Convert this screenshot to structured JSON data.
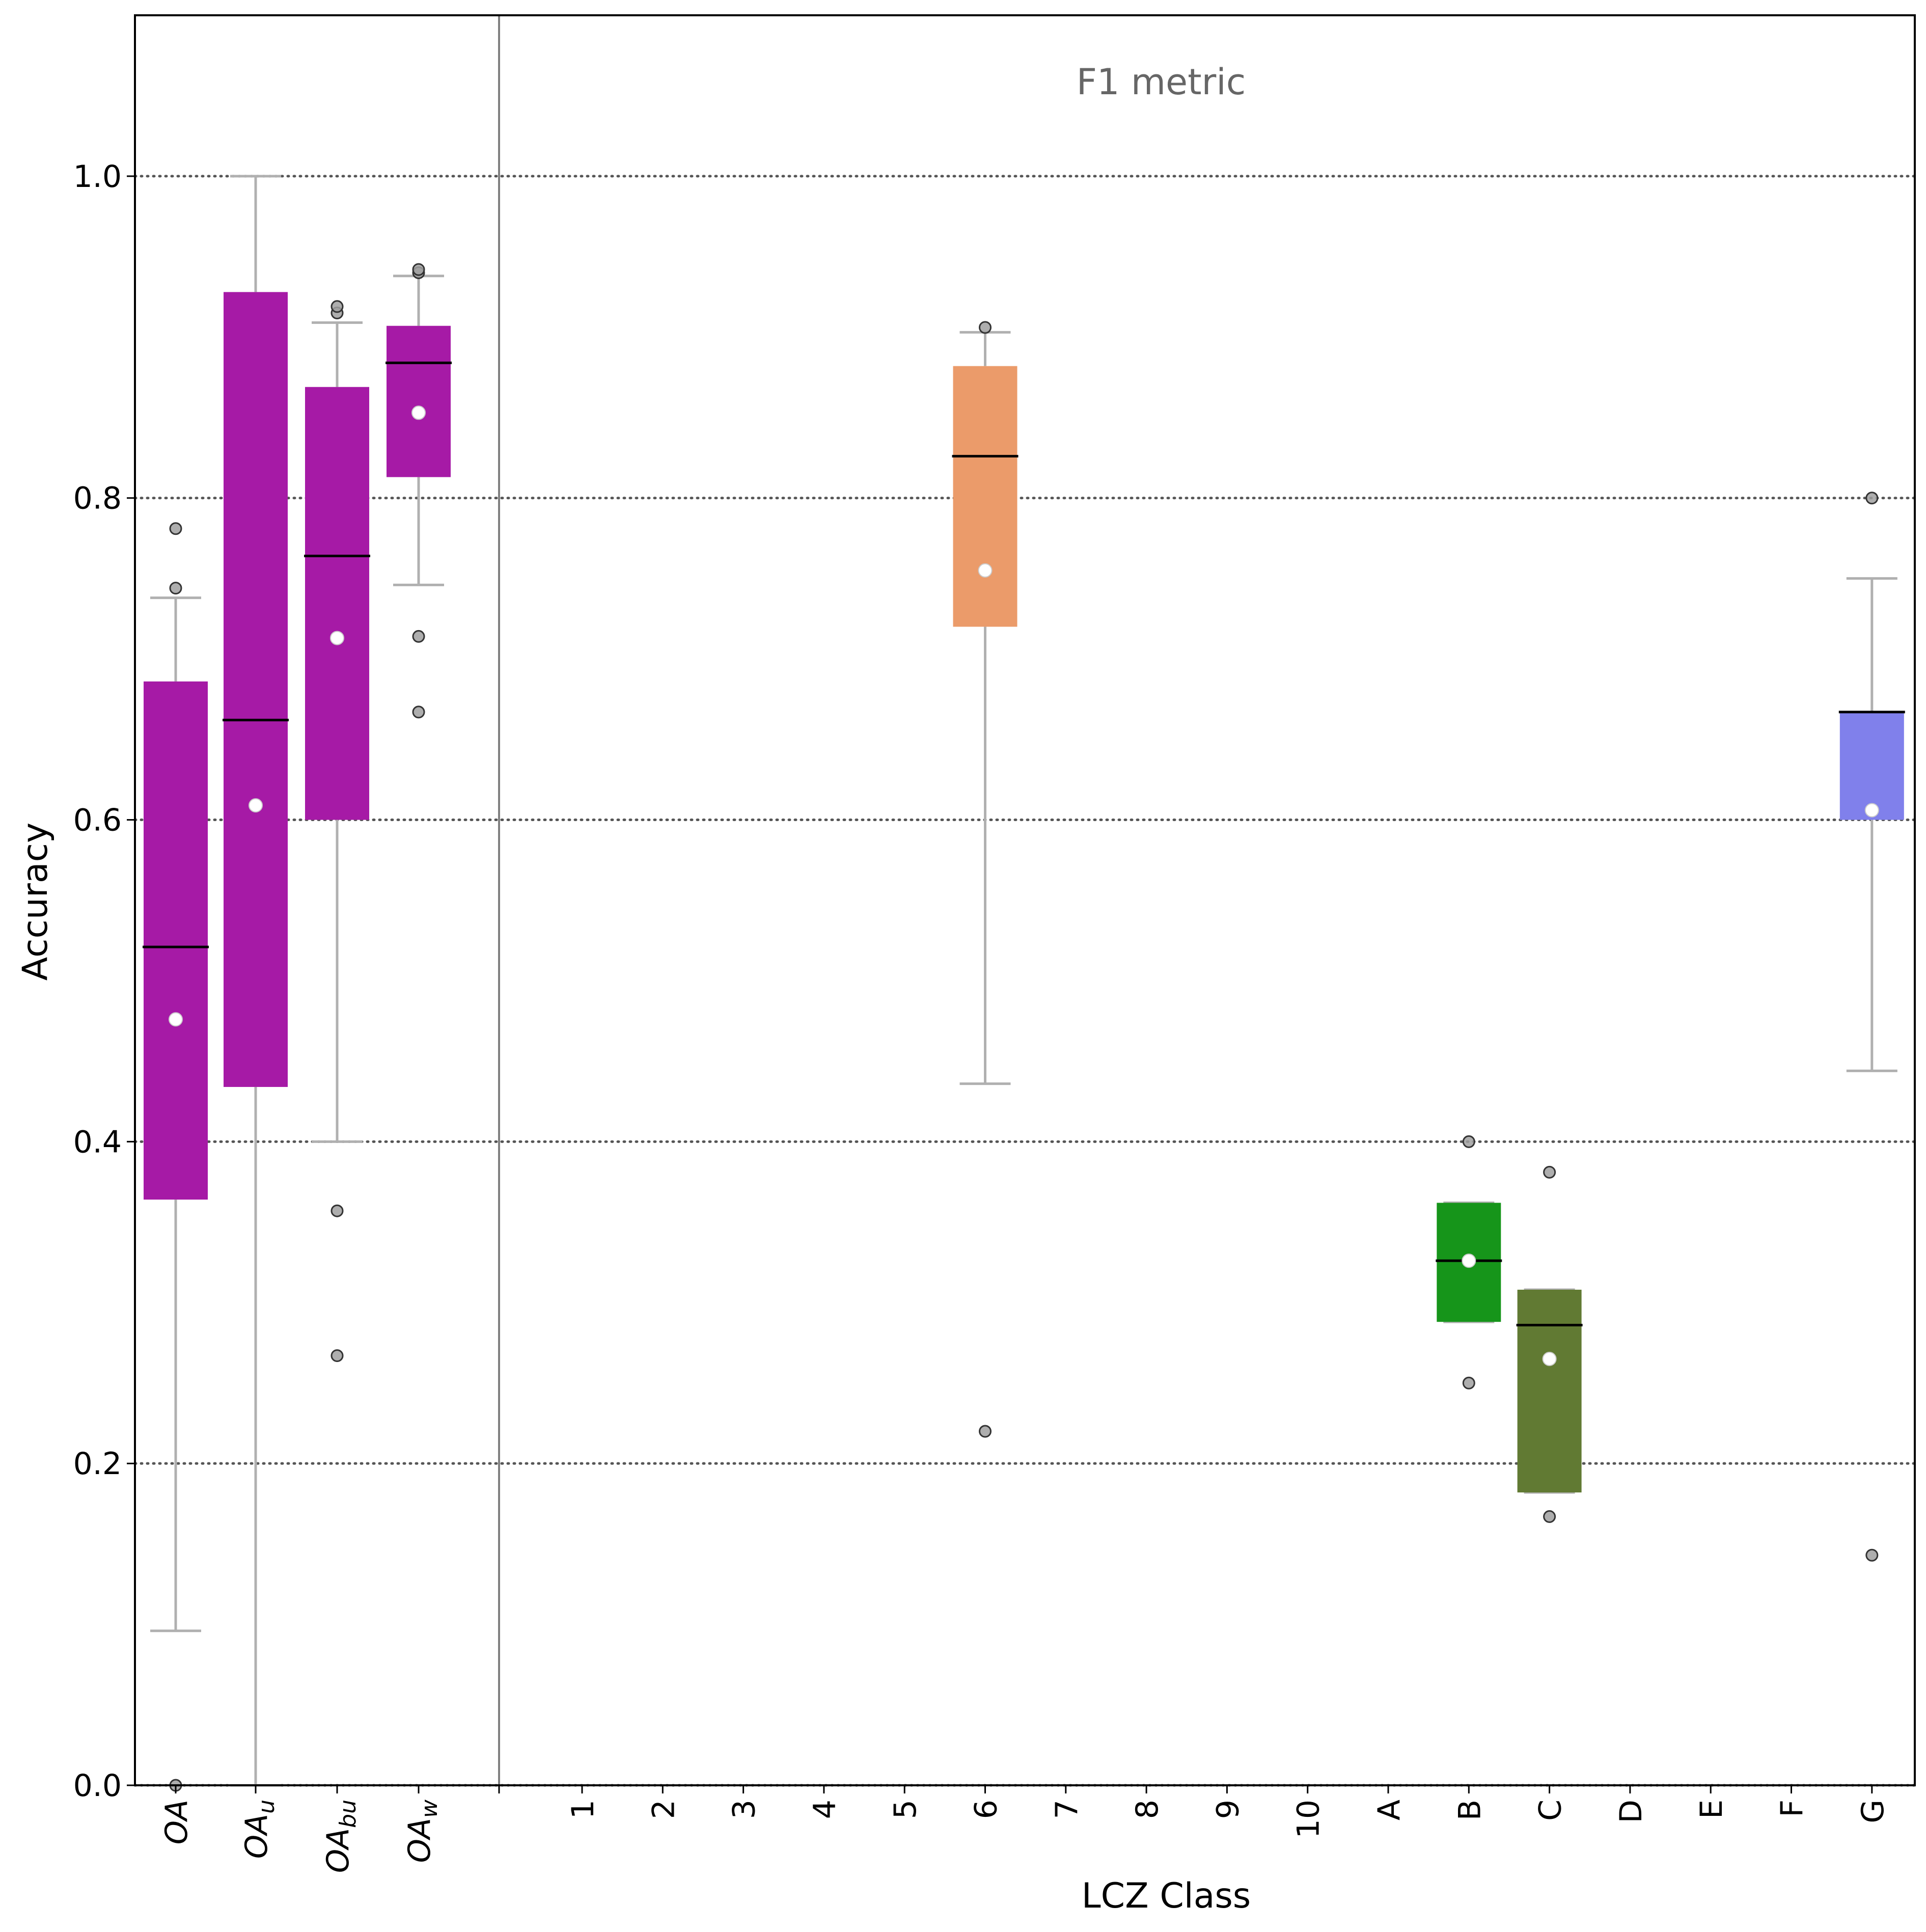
{
  "chart_data": {
    "type": "box",
    "title": "F1 metric",
    "xlabel": "LCZ Class",
    "ylabel": "Accuracy",
    "ylim": [
      0.0,
      1.1
    ],
    "yticks": [
      0.0,
      0.2,
      0.4,
      0.6,
      0.8,
      1.0
    ],
    "ytick_labels": [
      "0.0",
      "0.2",
      "0.4",
      "0.6",
      "0.8",
      "1.0"
    ],
    "grid": "horizontal dotted",
    "colors": {
      "overall": "#a61aa6",
      "class_6": "#eb9b6a",
      "class_B": "#16951a",
      "class_C": "#617a33",
      "class_G": "#8080eb",
      "whisker": "#b0b0b0",
      "median": "#000000",
      "mean": "#ffffff",
      "outlier": "#a0a0a0",
      "grid": "#555555",
      "title": "#666666"
    },
    "overall_metrics": [
      {
        "label": "OA",
        "sub": "",
        "q1": 0.364,
        "median": 0.521,
        "q3": 0.686,
        "whisker_low": 0.096,
        "whisker_high": 0.738,
        "mean": 0.476,
        "outliers": [
          0.0,
          0.744,
          0.781
        ]
      },
      {
        "label": "OA",
        "sub": "u",
        "q1": 0.434,
        "median": 0.662,
        "q3": 0.928,
        "whisker_low": 0.0,
        "whisker_high": 1.0,
        "mean": 0.609,
        "outliers": []
      },
      {
        "label": "OA",
        "sub": "bu",
        "q1": 0.6,
        "median": 0.764,
        "q3": 0.869,
        "whisker_low": 0.4,
        "whisker_high": 0.909,
        "mean": 0.713,
        "outliers": [
          0.357,
          0.267,
          0.915,
          0.919
        ]
      },
      {
        "label": "OA",
        "sub": "w",
        "q1": 0.813,
        "median": 0.884,
        "q3": 0.907,
        "whisker_low": 0.746,
        "whisker_high": 0.938,
        "mean": 0.853,
        "outliers": [
          0.714,
          0.667,
          0.94,
          0.942
        ]
      }
    ],
    "categories": [
      "1",
      "2",
      "3",
      "4",
      "5",
      "6",
      "7",
      "8",
      "9",
      "10",
      "A",
      "B",
      "C",
      "D",
      "E",
      "F",
      "G"
    ],
    "classes": [
      {
        "category": "6",
        "color_key": "class_6",
        "q1": 0.72,
        "median": 0.826,
        "q3": 0.882,
        "whisker_low": 0.436,
        "whisker_high": 0.903,
        "mean": 0.755,
        "outliers": [
          0.22,
          0.906
        ]
      },
      {
        "category": "B",
        "color_key": "class_B",
        "q1": 0.288,
        "median": 0.326,
        "q3": 0.362,
        "whisker_low": 0.288,
        "whisker_high": 0.362,
        "mean": 0.326,
        "outliers": [
          0.4,
          0.25
        ]
      },
      {
        "category": "C",
        "color_key": "class_C",
        "q1": 0.182,
        "median": 0.286,
        "q3": 0.308,
        "whisker_low": 0.182,
        "whisker_high": 0.308,
        "mean": 0.265,
        "outliers": [
          0.381,
          0.167
        ]
      },
      {
        "category": "G",
        "color_key": "class_G",
        "q1": 0.6,
        "median": 0.667,
        "q3": 0.667,
        "whisker_low": 0.444,
        "whisker_high": 0.75,
        "mean": 0.606,
        "outliers": [
          0.8,
          0.143
        ]
      }
    ]
  }
}
